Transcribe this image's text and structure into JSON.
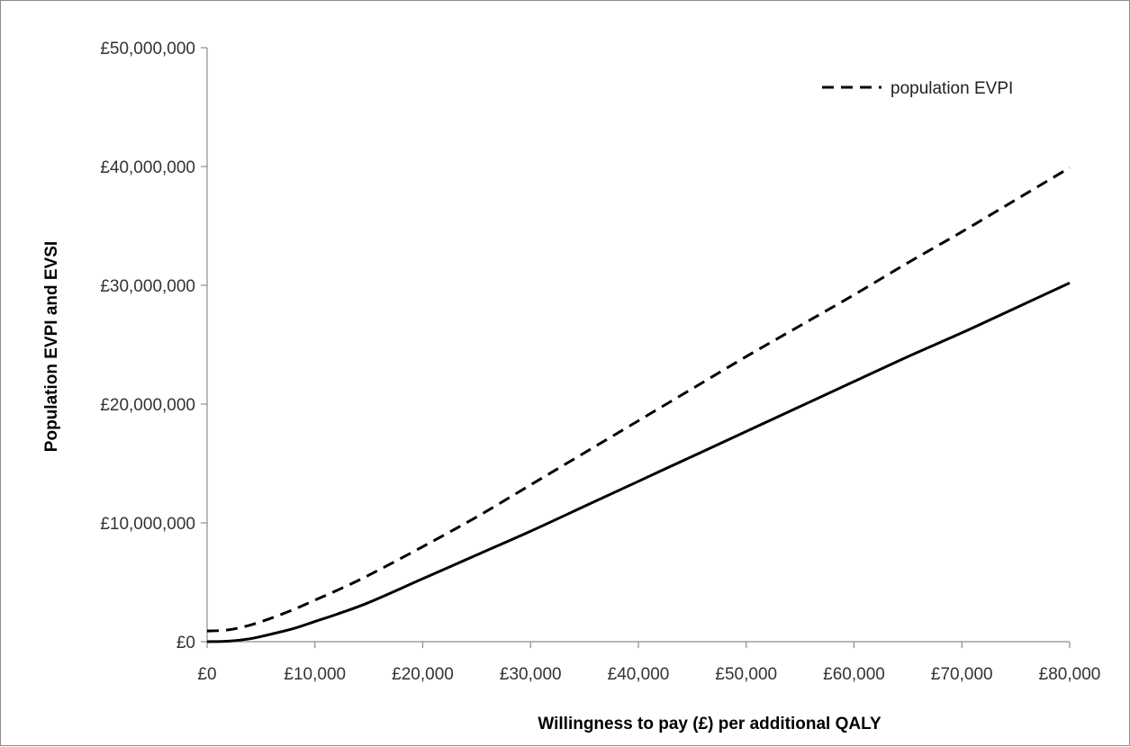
{
  "chart_data": {
    "type": "line",
    "title": "",
    "xlabel": "Willingness to pay (£) per additional QALY",
    "ylabel": "Population EVPI and EVSI",
    "xlim": [
      0,
      80000
    ],
    "ylim": [
      0,
      50000000
    ],
    "x_ticks": [
      0,
      10000,
      20000,
      30000,
      40000,
      50000,
      60000,
      70000,
      80000
    ],
    "x_tick_labels": [
      "£0",
      "£10,000",
      "£20,000",
      "£30,000",
      "£40,000",
      "£50,000",
      "£60,000",
      "£70,000",
      "£80,000"
    ],
    "y_ticks": [
      0,
      10000000,
      20000000,
      30000000,
      40000000,
      50000000
    ],
    "y_tick_labels": [
      "£0",
      "£10,000,000",
      "£20,000,000",
      "£30,000,000",
      "£40,000,000",
      "£50,000,000"
    ],
    "grid": false,
    "legend_position": "top-right",
    "series": [
      {
        "name": "population EVPI",
        "style": "dashed",
        "color": "#000000",
        "x": [
          0,
          2000,
          4000,
          6000,
          8000,
          10000,
          12000,
          15000,
          20000,
          25000,
          30000,
          35000,
          40000,
          45000,
          50000,
          55000,
          60000,
          65000,
          70000,
          75000,
          80000
        ],
        "y": [
          900000,
          1000000,
          1400000,
          2000000,
          2700000,
          3500000,
          4300000,
          5600000,
          8000000,
          10500000,
          13200000,
          15900000,
          18600000,
          21300000,
          24000000,
          26600000,
          29200000,
          31900000,
          34500000,
          37200000,
          39900000
        ]
      },
      {
        "style": "solid",
        "color": "#000000",
        "x": [
          0,
          2000,
          4000,
          6000,
          8000,
          10000,
          12000,
          15000,
          20000,
          25000,
          30000,
          35000,
          40000,
          45000,
          50000,
          55000,
          60000,
          65000,
          70000,
          75000,
          80000
        ],
        "y": [
          0,
          50000,
          250000,
          650000,
          1100000,
          1700000,
          2300000,
          3300000,
          5300000,
          7300000,
          9300000,
          11400000,
          13500000,
          15600000,
          17700000,
          19800000,
          21900000,
          24000000,
          26000000,
          28100000,
          30200000
        ]
      }
    ]
  }
}
